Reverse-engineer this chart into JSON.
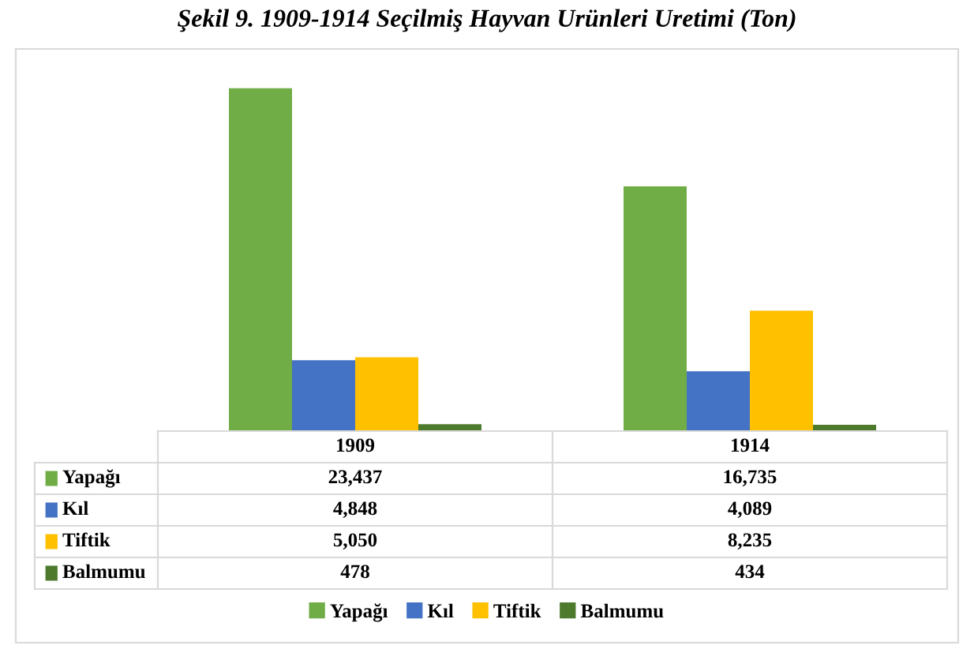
{
  "chart_data": {
    "type": "bar",
    "title": "Şekil 9. 1909-1914 Seçilmiş Hayvan Urünleri Uretimi (Ton)",
    "categories": [
      "1909",
      "1914"
    ],
    "series": [
      {
        "name": "Yapağı",
        "color": "#70ad47",
        "values": [
          23437,
          16735
        ],
        "value_labels": [
          "23,437",
          "16,735"
        ]
      },
      {
        "name": "Kıl",
        "color": "#4472c4",
        "values": [
          4848,
          4089
        ],
        "value_labels": [
          "4,848",
          "4,089"
        ]
      },
      {
        "name": "Tiftik",
        "color": "#ffc000",
        "values": [
          5050,
          8235
        ],
        "value_labels": [
          "5,050",
          "8,235"
        ]
      },
      {
        "name": "Balmumu",
        "color": "#4e7a2e",
        "values": [
          478,
          434
        ],
        "value_labels": [
          "478",
          "434"
        ]
      }
    ],
    "legend": "bottom",
    "data_labels": true
  }
}
